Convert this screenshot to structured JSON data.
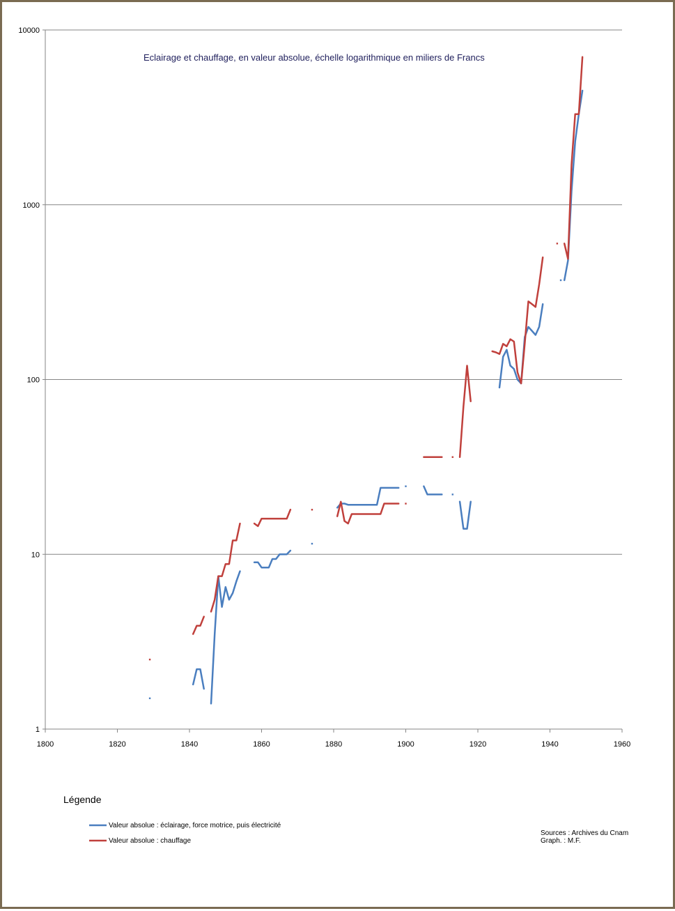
{
  "chart_data": {
    "type": "line",
    "title": "Eclairage et chauffage, en valeur absolue, échelle logarithmique en miliers de Francs",
    "xlabel": "",
    "ylabel": "",
    "y_scale": "log",
    "xlim": [
      1800,
      1960
    ],
    "ylim": [
      1,
      10000
    ],
    "x_ticks": [
      "1800",
      "1820",
      "1840",
      "1860",
      "1880",
      "1900",
      "1920",
      "1940",
      "1960"
    ],
    "y_ticks": [
      "1",
      "10",
      "100",
      "1000",
      "10000"
    ],
    "grid": "horizontal",
    "legend_title": "Légende",
    "legend_position": "bottom-left",
    "series": [
      {
        "name": "Valeur absolue : éclairage, force motrice, puis électricité",
        "color": "#4a7ebf",
        "segments": [
          [
            [
              1829,
              1.5
            ]
          ],
          [
            [
              1841,
              1.8
            ],
            [
              1842,
              2.2
            ],
            [
              1843,
              2.2
            ],
            [
              1844,
              1.7
            ]
          ],
          [
            [
              1846,
              1.4
            ],
            [
              1847,
              3.5
            ],
            [
              1848,
              7.5
            ],
            [
              1849,
              5.0
            ],
            [
              1850,
              6.5
            ],
            [
              1851,
              5.5
            ],
            [
              1852,
              6.0
            ],
            [
              1853,
              7.0
            ],
            [
              1854,
              8.0
            ]
          ],
          [
            [
              1858,
              9.0
            ],
            [
              1859,
              9.0
            ],
            [
              1860,
              8.4
            ],
            [
              1861,
              8.4
            ],
            [
              1862,
              8.4
            ],
            [
              1863,
              9.4
            ],
            [
              1864,
              9.4
            ],
            [
              1865,
              10.0
            ],
            [
              1866,
              10.0
            ],
            [
              1867,
              10.0
            ],
            [
              1868,
              10.5
            ]
          ],
          [
            [
              1874,
              11.5
            ]
          ],
          [
            [
              1881,
              18.5
            ],
            [
              1882,
              19.5
            ],
            [
              1883,
              19.5
            ],
            [
              1884,
              19.2
            ],
            [
              1885,
              19.2
            ],
            [
              1886,
              19.2
            ],
            [
              1887,
              19.2
            ],
            [
              1888,
              19.2
            ],
            [
              1889,
              19.2
            ],
            [
              1890,
              19.2
            ],
            [
              1891,
              19.2
            ],
            [
              1892,
              19.2
            ],
            [
              1893,
              24.0
            ],
            [
              1894,
              24.0
            ],
            [
              1895,
              24.0
            ],
            [
              1896,
              24.0
            ],
            [
              1897,
              24.0
            ],
            [
              1898,
              24.0
            ]
          ],
          [
            [
              1900,
              24.5
            ]
          ],
          [
            [
              1905,
              24.5
            ],
            [
              1906,
              22.0
            ],
            [
              1907,
              22.0
            ],
            [
              1908,
              22.0
            ],
            [
              1909,
              22.0
            ],
            [
              1910,
              22.0
            ]
          ],
          [
            [
              1913,
              22.0
            ]
          ],
          [
            [
              1915,
              20.0
            ],
            [
              1916,
              14.0
            ],
            [
              1917,
              14.0
            ],
            [
              1918,
              20.0
            ]
          ],
          [
            [
              1926,
              90
            ],
            [
              1927,
              135
            ],
            [
              1928,
              148
            ],
            [
              1929,
              120
            ],
            [
              1930,
              115
            ],
            [
              1931,
              100
            ],
            [
              1932,
              95
            ],
            [
              1933,
              175
            ],
            [
              1934,
              200
            ],
            [
              1935,
              190
            ],
            [
              1936,
              180
            ],
            [
              1937,
              200
            ],
            [
              1938,
              270
            ]
          ],
          [
            [
              1943,
              370
            ]
          ],
          [
            [
              1944,
              370
            ],
            [
              1945,
              480
            ],
            [
              1946,
              1200
            ],
            [
              1947,
              2300
            ],
            [
              1948,
              3300
            ],
            [
              1949,
              4500
            ]
          ]
        ]
      },
      {
        "name": "Valeur absolue : chauffage",
        "color": "#c0403c",
        "segments": [
          [
            [
              1829,
              2.5
            ]
          ],
          [
            [
              1841,
              3.5
            ],
            [
              1842,
              3.9
            ],
            [
              1843,
              3.9
            ],
            [
              1844,
              4.4
            ]
          ],
          [
            [
              1846,
              4.7
            ],
            [
              1847,
              5.5
            ],
            [
              1848,
              7.5
            ],
            [
              1849,
              7.5
            ],
            [
              1850,
              8.8
            ],
            [
              1851,
              8.8
            ],
            [
              1852,
              12.0
            ],
            [
              1853,
              12.0
            ],
            [
              1854,
              15.0
            ]
          ],
          [
            [
              1858,
              15.0
            ],
            [
              1859,
              14.5
            ],
            [
              1860,
              16.0
            ],
            [
              1861,
              16.0
            ],
            [
              1862,
              16.0
            ],
            [
              1863,
              16.0
            ],
            [
              1864,
              16.0
            ],
            [
              1865,
              16.0
            ],
            [
              1866,
              16.0
            ],
            [
              1867,
              16.0
            ],
            [
              1868,
              18.0
            ]
          ],
          [
            [
              1874,
              18.0
            ]
          ],
          [
            [
              1881,
              16.5
            ],
            [
              1882,
              20.0
            ],
            [
              1883,
              15.5
            ],
            [
              1884,
              15.0
            ],
            [
              1885,
              17.0
            ],
            [
              1886,
              17.0
            ],
            [
              1887,
              17.0
            ],
            [
              1888,
              17.0
            ],
            [
              1889,
              17.0
            ],
            [
              1890,
              17.0
            ],
            [
              1891,
              17.0
            ],
            [
              1892,
              17.0
            ],
            [
              1893,
              17.0
            ],
            [
              1894,
              19.5
            ],
            [
              1895,
              19.5
            ],
            [
              1896,
              19.5
            ],
            [
              1897,
              19.5
            ],
            [
              1898,
              19.5
            ]
          ],
          [
            [
              1900,
              19.5
            ]
          ],
          [
            [
              1905,
              36.0
            ],
            [
              1906,
              36.0
            ],
            [
              1907,
              36.0
            ],
            [
              1908,
              36.0
            ],
            [
              1909,
              36.0
            ],
            [
              1910,
              36.0
            ]
          ],
          [
            [
              1913,
              36.0
            ]
          ],
          [
            [
              1915,
              36.0
            ],
            [
              1916,
              70.0
            ],
            [
              1917,
              120.0
            ],
            [
              1918,
              75.0
            ]
          ],
          [
            [
              1924,
              145
            ],
            [
              1925,
              143
            ],
            [
              1926,
              140
            ],
            [
              1927,
              160
            ],
            [
              1928,
              155
            ],
            [
              1929,
              170
            ],
            [
              1930,
              165
            ],
            [
              1931,
              110
            ],
            [
              1932,
              95
            ],
            [
              1933,
              160
            ],
            [
              1934,
              280
            ],
            [
              1935,
              270
            ],
            [
              1936,
              260
            ],
            [
              1937,
              350
            ],
            [
              1938,
              500
            ]
          ],
          [
            [
              1942,
              600
            ]
          ],
          [
            [
              1944,
              600
            ],
            [
              1945,
              490
            ],
            [
              1946,
              1700
            ],
            [
              1947,
              3300
            ],
            [
              1948,
              3300
            ],
            [
              1949,
              7000
            ]
          ]
        ]
      }
    ]
  },
  "sources": {
    "line1": "Sources : Archives du Cnam",
    "line2": "Graph. : M.F."
  }
}
